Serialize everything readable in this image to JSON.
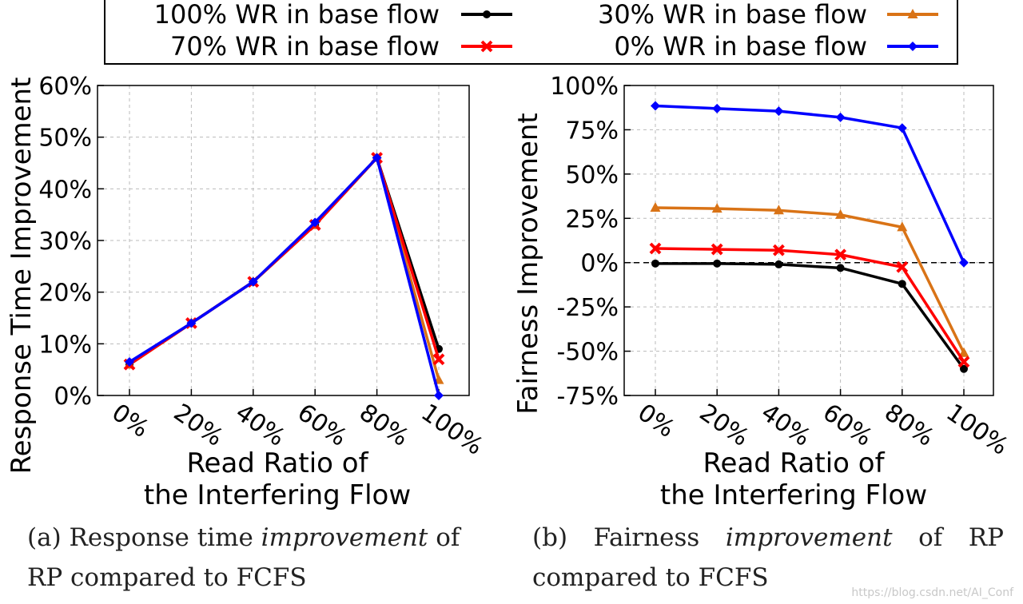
{
  "legend": {
    "entries": [
      {
        "label": "100% WR in base flow",
        "color": "#000000",
        "marker": "circle"
      },
      {
        "label": "30% WR in base flow",
        "color": "#d97316",
        "marker": "triangle"
      },
      {
        "label": "70% WR in base flow",
        "color": "#ff0000",
        "marker": "x"
      },
      {
        "label": "0% WR in base flow",
        "color": "#0000ff",
        "marker": "diamond"
      }
    ]
  },
  "captions": {
    "a": {
      "prefix": "(a) Response time ",
      "emph": "improvement",
      "suffix": " of RP compared to FCFS"
    },
    "b": {
      "prefix": "(b) Fairness ",
      "emph": "improvement",
      "suffix": " of RP compared to FCFS"
    }
  },
  "watermark": "https://blog.csdn.net/AI_Conf",
  "chart_data": [
    {
      "type": "line",
      "title": "",
      "xlabel": "Read Ratio of the Interfering Flow",
      "xlabel_lines": [
        "Read Ratio of",
        "the Interfering Flow"
      ],
      "ylabel": "Response Time Improvement",
      "categories": [
        "0%",
        "20%",
        "40%",
        "60%",
        "80%",
        "100%"
      ],
      "ylim": [
        0,
        60
      ],
      "yticks": [
        0,
        10,
        20,
        30,
        40,
        50,
        60
      ],
      "ytick_labels": [
        "0%",
        "10%",
        "20%",
        "30%",
        "40%",
        "50%",
        "60%"
      ],
      "grid": true,
      "series": [
        {
          "name": "100% WR in base flow",
          "values": [
            6,
            14,
            22,
            33,
            46,
            9
          ]
        },
        {
          "name": "30% WR in base flow",
          "values": [
            6,
            14,
            22,
            33,
            46,
            3
          ]
        },
        {
          "name": "70% WR in base flow",
          "values": [
            6,
            14,
            22,
            33,
            46,
            7
          ]
        },
        {
          "name": "0% WR in base flow",
          "values": [
            6.5,
            14,
            22,
            33.5,
            46,
            0
          ]
        }
      ]
    },
    {
      "type": "line",
      "title": "",
      "xlabel": "Read Ratio of the Interfering Flow",
      "xlabel_lines": [
        "Read Ratio of",
        "the Interfering Flow"
      ],
      "ylabel": "Fairness Improvement",
      "categories": [
        "0%",
        "20%",
        "40%",
        "60%",
        "80%",
        "100%"
      ],
      "ylim": [
        -75,
        100
      ],
      "yticks": [
        -75,
        -50,
        -25,
        0,
        25,
        50,
        75,
        100
      ],
      "ytick_labels": [
        "-75%",
        "-50%",
        "-25%",
        "0%",
        "25%",
        "50%",
        "75%",
        "100%"
      ],
      "grid": true,
      "reference_line": 0,
      "series": [
        {
          "name": "100% WR in base flow",
          "values": [
            -0.5,
            -0.5,
            -1,
            -3,
            -12,
            -60
          ]
        },
        {
          "name": "30% WR in base flow",
          "values": [
            31,
            30.5,
            29.5,
            27,
            20,
            -51
          ]
        },
        {
          "name": "70% WR in base flow",
          "values": [
            8,
            7.5,
            7,
            4.5,
            -2.5,
            -56
          ]
        },
        {
          "name": "0% WR in base flow",
          "values": [
            88.5,
            87,
            85.5,
            82,
            76,
            0
          ]
        }
      ]
    }
  ]
}
